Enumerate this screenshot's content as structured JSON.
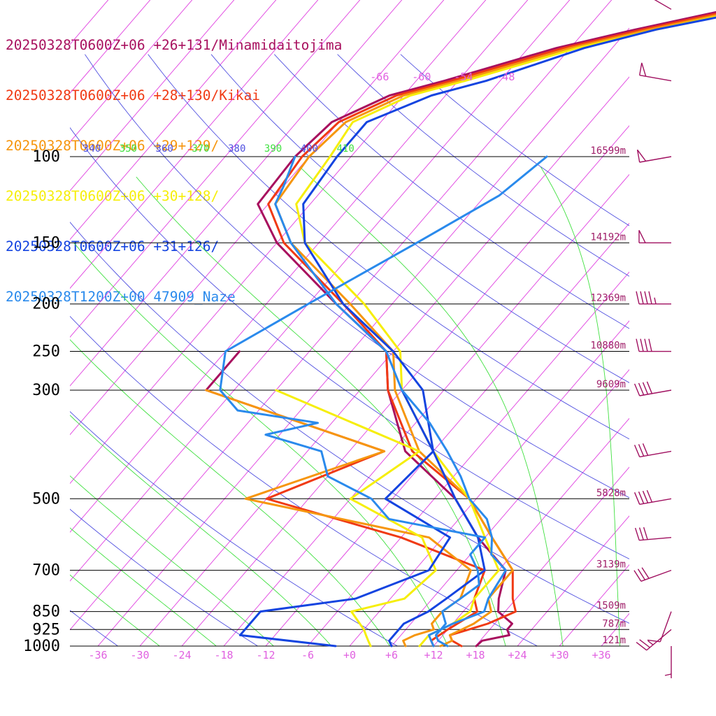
{
  "chart_data": {
    "type": "line",
    "subtype": "skew-T log-P sounding",
    "x_axis": {
      "unit": "°C",
      "range": [
        -40,
        40
      ],
      "tick_labels": [
        "-36",
        "-30",
        "-24",
        "-18",
        "-12",
        "-6",
        "+0",
        "+6",
        "+12",
        "+18",
        "+24",
        "+30",
        "+36"
      ]
    },
    "y_axis": {
      "unit": "hPa",
      "scale": "log",
      "range": [
        1000,
        100
      ],
      "tick_labels": [
        "100",
        "150",
        "200",
        "250",
        "300",
        "500",
        "700",
        "850",
        "925",
        "1000"
      ]
    },
    "height_labels": [
      "16599m",
      "14192m",
      "12369m",
      "10880m",
      "9609m",
      "5828m",
      "3139m",
      "1509m",
      "787m",
      "121m"
    ],
    "theta_labels": [
      "310",
      "320",
      "330",
      "340",
      "350",
      "360",
      "370",
      "380",
      "390",
      "400",
      "410"
    ],
    "upper_temp_labels": [
      "-66",
      "-60",
      "-54",
      "-48"
    ],
    "colors": {
      "grid": "#000000",
      "isotherm": "#e040e0",
      "dry_adiabat": "#5050e0",
      "moist_adiabat": "#40e040",
      "axis_text": "#e060e0",
      "height_text": "#a0206a",
      "barb": "#a01060"
    },
    "series": [
      {
        "name": "20250328T0600Z+06 +26+131/Minamidaitojima",
        "color": "#a8105e",
        "temperature": [
          [
            1000,
            18.1
          ],
          [
            975,
            18.3
          ],
          [
            950,
            21.5
          ],
          [
            925,
            20.5
          ],
          [
            900,
            20.5
          ],
          [
            850,
            17
          ],
          [
            800,
            15.5
          ],
          [
            700,
            13
          ],
          [
            600,
            5
          ],
          [
            500,
            -3
          ],
          [
            400,
            -16
          ],
          [
            300,
            -26
          ],
          [
            250,
            -31
          ],
          [
            200,
            -44
          ],
          [
            150,
            -60
          ],
          [
            125,
            -67.5
          ],
          [
            100,
            -68
          ],
          [
            85,
            -67
          ],
          [
            75,
            -62
          ],
          [
            70,
            -56
          ],
          [
            60,
            -44
          ],
          [
            55,
            -35
          ],
          [
            50,
            -24
          ],
          [
            45,
            -15
          ],
          [
            40,
            -8
          ]
        ],
        "dewpoint": [
          [
            300,
            -52
          ],
          [
            250,
            -52
          ]
        ]
      },
      {
        "name": "20250328T0600Z+06 +28+130/Kikai",
        "color": "#f03a14",
        "temperature": [
          [
            1000,
            16
          ],
          [
            975,
            14
          ],
          [
            950,
            13
          ],
          [
            925,
            15
          ],
          [
            900,
            17
          ],
          [
            850,
            19.5
          ],
          [
            800,
            17.5
          ],
          [
            700,
            14
          ],
          [
            600,
            7
          ],
          [
            500,
            -1
          ],
          [
            400,
            -15
          ],
          [
            300,
            -26
          ],
          [
            250,
            -31
          ],
          [
            200,
            -43
          ],
          [
            150,
            -59
          ],
          [
            125,
            -66
          ],
          [
            100,
            -67
          ],
          [
            85,
            -66
          ],
          [
            75,
            -61
          ],
          [
            70,
            -55
          ],
          [
            60,
            -43
          ],
          [
            55,
            -34
          ],
          [
            50,
            -23
          ],
          [
            45,
            -14
          ],
          [
            40,
            -7
          ]
        ],
        "dewpoint": [
          [
            1000,
            12
          ],
          [
            975,
            11
          ],
          [
            925,
            12
          ],
          [
            850,
            14
          ],
          [
            800,
            12
          ],
          [
            700,
            10
          ],
          [
            600,
            -6
          ],
          [
            500,
            -30
          ],
          [
            400,
            -19
          ],
          [
            300,
            -52
          ]
        ]
      },
      {
        "name": "20250328T0600Z+06 +29+129/",
        "color": "#f6960e",
        "temperature": [
          [
            1000,
            13
          ],
          [
            975,
            14
          ],
          [
            950,
            13
          ],
          [
            925,
            14
          ],
          [
            900,
            15
          ],
          [
            850,
            16
          ],
          [
            800,
            14
          ],
          [
            700,
            14
          ],
          [
            600,
            7
          ],
          [
            500,
            -1
          ],
          [
            400,
            -14
          ],
          [
            300,
            -25
          ],
          [
            250,
            -30
          ],
          [
            200,
            -42
          ],
          [
            150,
            -58
          ],
          [
            125,
            -65
          ],
          [
            100,
            -66
          ],
          [
            85,
            -65
          ],
          [
            75,
            -60
          ],
          [
            70,
            -54
          ],
          [
            60,
            -42
          ],
          [
            55,
            -33
          ],
          [
            50,
            -22
          ],
          [
            45,
            -13
          ],
          [
            40,
            -6
          ]
        ],
        "dewpoint": [
          [
            1000,
            8
          ],
          [
            975,
            7
          ],
          [
            950,
            8
          ],
          [
            925,
            10
          ],
          [
            900,
            9
          ],
          [
            850,
            9
          ],
          [
            800,
            10
          ],
          [
            700,
            8
          ],
          [
            600,
            -2
          ],
          [
            500,
            -33
          ],
          [
            400,
            -19
          ],
          [
            300,
            -52
          ]
        ]
      },
      {
        "name": "20250328T0600Z+06 +30+128/",
        "color": "#f6ee0a",
        "temperature": [
          [
            1000,
            10
          ],
          [
            975,
            10
          ],
          [
            950,
            10
          ],
          [
            925,
            11
          ],
          [
            900,
            12
          ],
          [
            850,
            13
          ],
          [
            800,
            12
          ],
          [
            700,
            12
          ],
          [
            600,
            6
          ],
          [
            500,
            -1
          ],
          [
            400,
            -12
          ],
          [
            300,
            -24
          ],
          [
            250,
            -29
          ],
          [
            200,
            -40
          ],
          [
            150,
            -56
          ],
          [
            125,
            -62
          ],
          [
            100,
            -63
          ],
          [
            85,
            -64
          ],
          [
            75,
            -59
          ],
          [
            70,
            -53
          ],
          [
            60,
            -41
          ],
          [
            55,
            -32
          ],
          [
            50,
            -21
          ],
          [
            45,
            -12
          ],
          [
            40,
            -5
          ]
        ],
        "dewpoint": [
          [
            1000,
            3
          ],
          [
            975,
            2
          ],
          [
            950,
            1
          ],
          [
            925,
            0
          ],
          [
            850,
            -4
          ],
          [
            800,
            2
          ],
          [
            700,
            3
          ],
          [
            600,
            -3
          ],
          [
            500,
            -18
          ],
          [
            400,
            -14
          ],
          [
            300,
            -42
          ]
        ]
      },
      {
        "name": "20250328T0600Z+06 +31+126/",
        "color": "#1444e0",
        "temperature": [
          [
            1000,
            6
          ],
          [
            975,
            5
          ],
          [
            950,
            5
          ],
          [
            925,
            5
          ],
          [
            900,
            5
          ],
          [
            850,
            7
          ],
          [
            800,
            8
          ],
          [
            700,
            10
          ],
          [
            600,
            5
          ],
          [
            500,
            -3
          ],
          [
            400,
            -12
          ],
          [
            300,
            -21
          ],
          [
            250,
            -30
          ],
          [
            200,
            -43
          ],
          [
            150,
            -56
          ],
          [
            125,
            -61
          ],
          [
            100,
            -62
          ],
          [
            85,
            -62
          ],
          [
            75,
            -56
          ],
          [
            70,
            -50
          ],
          [
            60,
            -40
          ],
          [
            55,
            -32
          ],
          [
            50,
            -20
          ],
          [
            45,
            -12
          ],
          [
            40,
            -5
          ]
        ],
        "dewpoint": [
          [
            1000,
            -2
          ],
          [
            950,
            -17
          ],
          [
            925,
            -17
          ],
          [
            900,
            -17
          ],
          [
            850,
            -17
          ],
          [
            800,
            -5
          ],
          [
            700,
            2
          ],
          [
            600,
            1
          ],
          [
            500,
            -13
          ],
          [
            400,
            -12
          ],
          [
            300,
            -24
          ]
        ]
      },
      {
        "name": "20250328T1200Z+00 47909_Naze",
        "color": "#2a8aec",
        "temperature": [
          [
            1000,
            14
          ],
          [
            975,
            12
          ],
          [
            950,
            11
          ],
          [
            925,
            11
          ],
          [
            900,
            12
          ],
          [
            850,
            15
          ],
          [
            800,
            14
          ],
          [
            700,
            13
          ],
          [
            650,
            9
          ],
          [
            600,
            7
          ],
          [
            550,
            4
          ],
          [
            500,
            -1
          ],
          [
            450,
            -5
          ],
          [
            400,
            -10
          ],
          [
            350,
            -16
          ],
          [
            300,
            -24
          ],
          [
            250,
            -31
          ],
          [
            200,
            -44
          ],
          [
            150,
            -58
          ],
          [
            125,
            -65
          ],
          [
            115,
            -66
          ],
          [
            100,
            -68
          ]
        ],
        "dewpoint": [
          [
            1000,
            12
          ],
          [
            975,
            11
          ],
          [
            950,
            10
          ],
          [
            925,
            11
          ],
          [
            900,
            11
          ],
          [
            850,
            9
          ],
          [
            800,
            10
          ],
          [
            750,
            11
          ],
          [
            700,
            9
          ],
          [
            650,
            6
          ],
          [
            600,
            6
          ],
          [
            550,
            -10
          ],
          [
            500,
            -15
          ],
          [
            450,
            -24
          ],
          [
            400,
            -28
          ],
          [
            370,
            -38
          ],
          [
            350,
            -32
          ],
          [
            330,
            -45
          ],
          [
            300,
            -50
          ],
          [
            250,
            -54
          ],
          [
            200,
            -48
          ],
          [
            150,
            -40
          ],
          [
            120,
            -34
          ],
          [
            100,
            -32
          ]
        ]
      }
    ],
    "wind_barbs": [
      {
        "p": 50,
        "dir": 300,
        "kt": 15
      },
      {
        "p": 70,
        "dir": 280,
        "kt": 50
      },
      {
        "p": 100,
        "dir": 260,
        "kt": 50
      },
      {
        "p": 150,
        "dir": 270,
        "kt": 50
      },
      {
        "p": 200,
        "dir": 270,
        "kt": 45
      },
      {
        "p": 250,
        "dir": 270,
        "kt": 40
      },
      {
        "p": 300,
        "dir": 260,
        "kt": 40
      },
      {
        "p": 400,
        "dir": 260,
        "kt": 30
      },
      {
        "p": 500,
        "dir": 260,
        "kt": 40
      },
      {
        "p": 600,
        "dir": 265,
        "kt": 30
      },
      {
        "p": 700,
        "dir": 250,
        "kt": 30
      },
      {
        "p": 850,
        "dir": 200,
        "kt": 10
      },
      {
        "p": 925,
        "dir": 230,
        "kt": 25
      },
      {
        "p": 1000,
        "dir": 180,
        "kt": 5
      }
    ]
  }
}
